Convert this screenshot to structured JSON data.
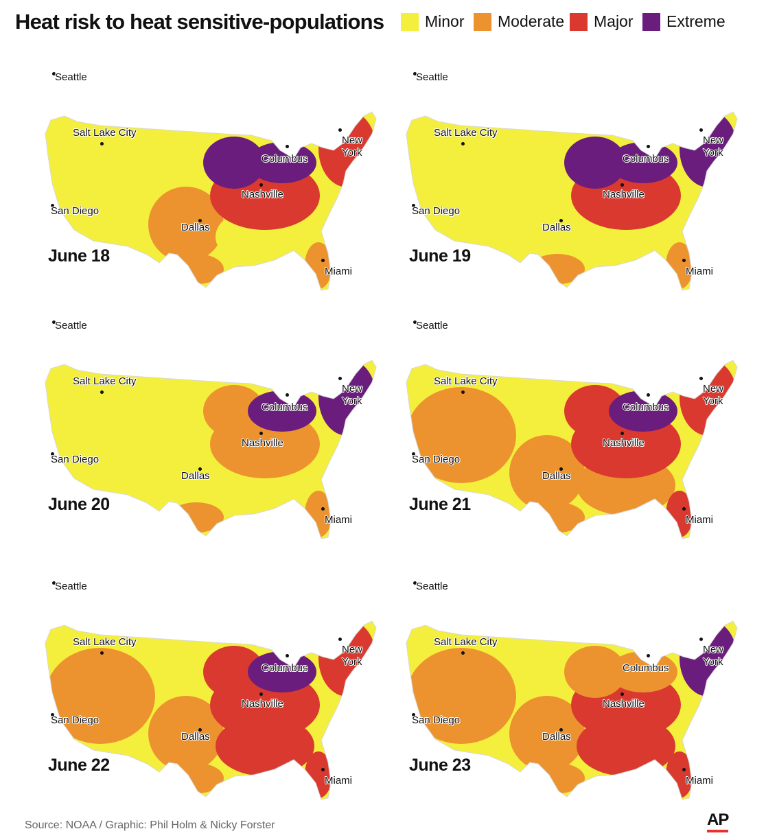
{
  "title": "Heat risk to heat sensitive-populations",
  "legend": [
    {
      "label": "Minor",
      "color": "#f4ef3c"
    },
    {
      "label": "Moderate",
      "color": "#ec9330"
    },
    {
      "label": "Major",
      "color": "#d9392f"
    },
    {
      "label": "Extreme",
      "color": "#6b1d7d"
    }
  ],
  "cities": [
    "Seattle",
    "Salt Lake City",
    "San Diego",
    "Dallas",
    "Nashville",
    "Columbus",
    "New York",
    "Miami"
  ],
  "panels": [
    {
      "date": "June 18",
      "risk": {
        "west": "minor",
        "midwest": "extreme",
        "great_lakes": "extreme",
        "northeast": "major",
        "ohio_valley": "major",
        "plains": "moderate",
        "southeast": "minor",
        "texas_coast": "moderate",
        "florida": "moderate"
      }
    },
    {
      "date": "June 19",
      "risk": {
        "west": "minor",
        "midwest": "extreme",
        "great_lakes": "extreme",
        "northeast": "extreme",
        "ohio_valley": "major",
        "plains": "minor",
        "southeast": "minor",
        "texas_coast": "moderate",
        "florida": "moderate"
      }
    },
    {
      "date": "June 20",
      "risk": {
        "west": "minor",
        "midwest": "moderate",
        "great_lakes": "extreme",
        "northeast": "extreme",
        "ohio_valley": "moderate",
        "plains": "minor",
        "southeast": "minor",
        "texas_coast": "moderate",
        "florida": "moderate"
      }
    },
    {
      "date": "June 21",
      "risk": {
        "west": "moderate",
        "midwest": "major",
        "great_lakes": "extreme",
        "northeast": "major",
        "ohio_valley": "major",
        "plains": "moderate",
        "southeast": "moderate",
        "texas_coast": "moderate",
        "florida": "major"
      }
    },
    {
      "date": "June 22",
      "risk": {
        "west": "moderate",
        "midwest": "major",
        "great_lakes": "extreme",
        "northeast": "major",
        "ohio_valley": "major",
        "plains": "moderate",
        "southeast": "major",
        "texas_coast": "moderate",
        "florida": "major"
      }
    },
    {
      "date": "June 23",
      "risk": {
        "west": "moderate",
        "midwest": "moderate",
        "great_lakes": "moderate",
        "northeast": "extreme",
        "ohio_valley": "major",
        "plains": "moderate",
        "southeast": "major",
        "texas_coast": "moderate",
        "florida": "major"
      }
    }
  ],
  "source": "Source: NOAA / Graphic: Phil Holm & Nicky Forster",
  "credit_logo": "AP"
}
